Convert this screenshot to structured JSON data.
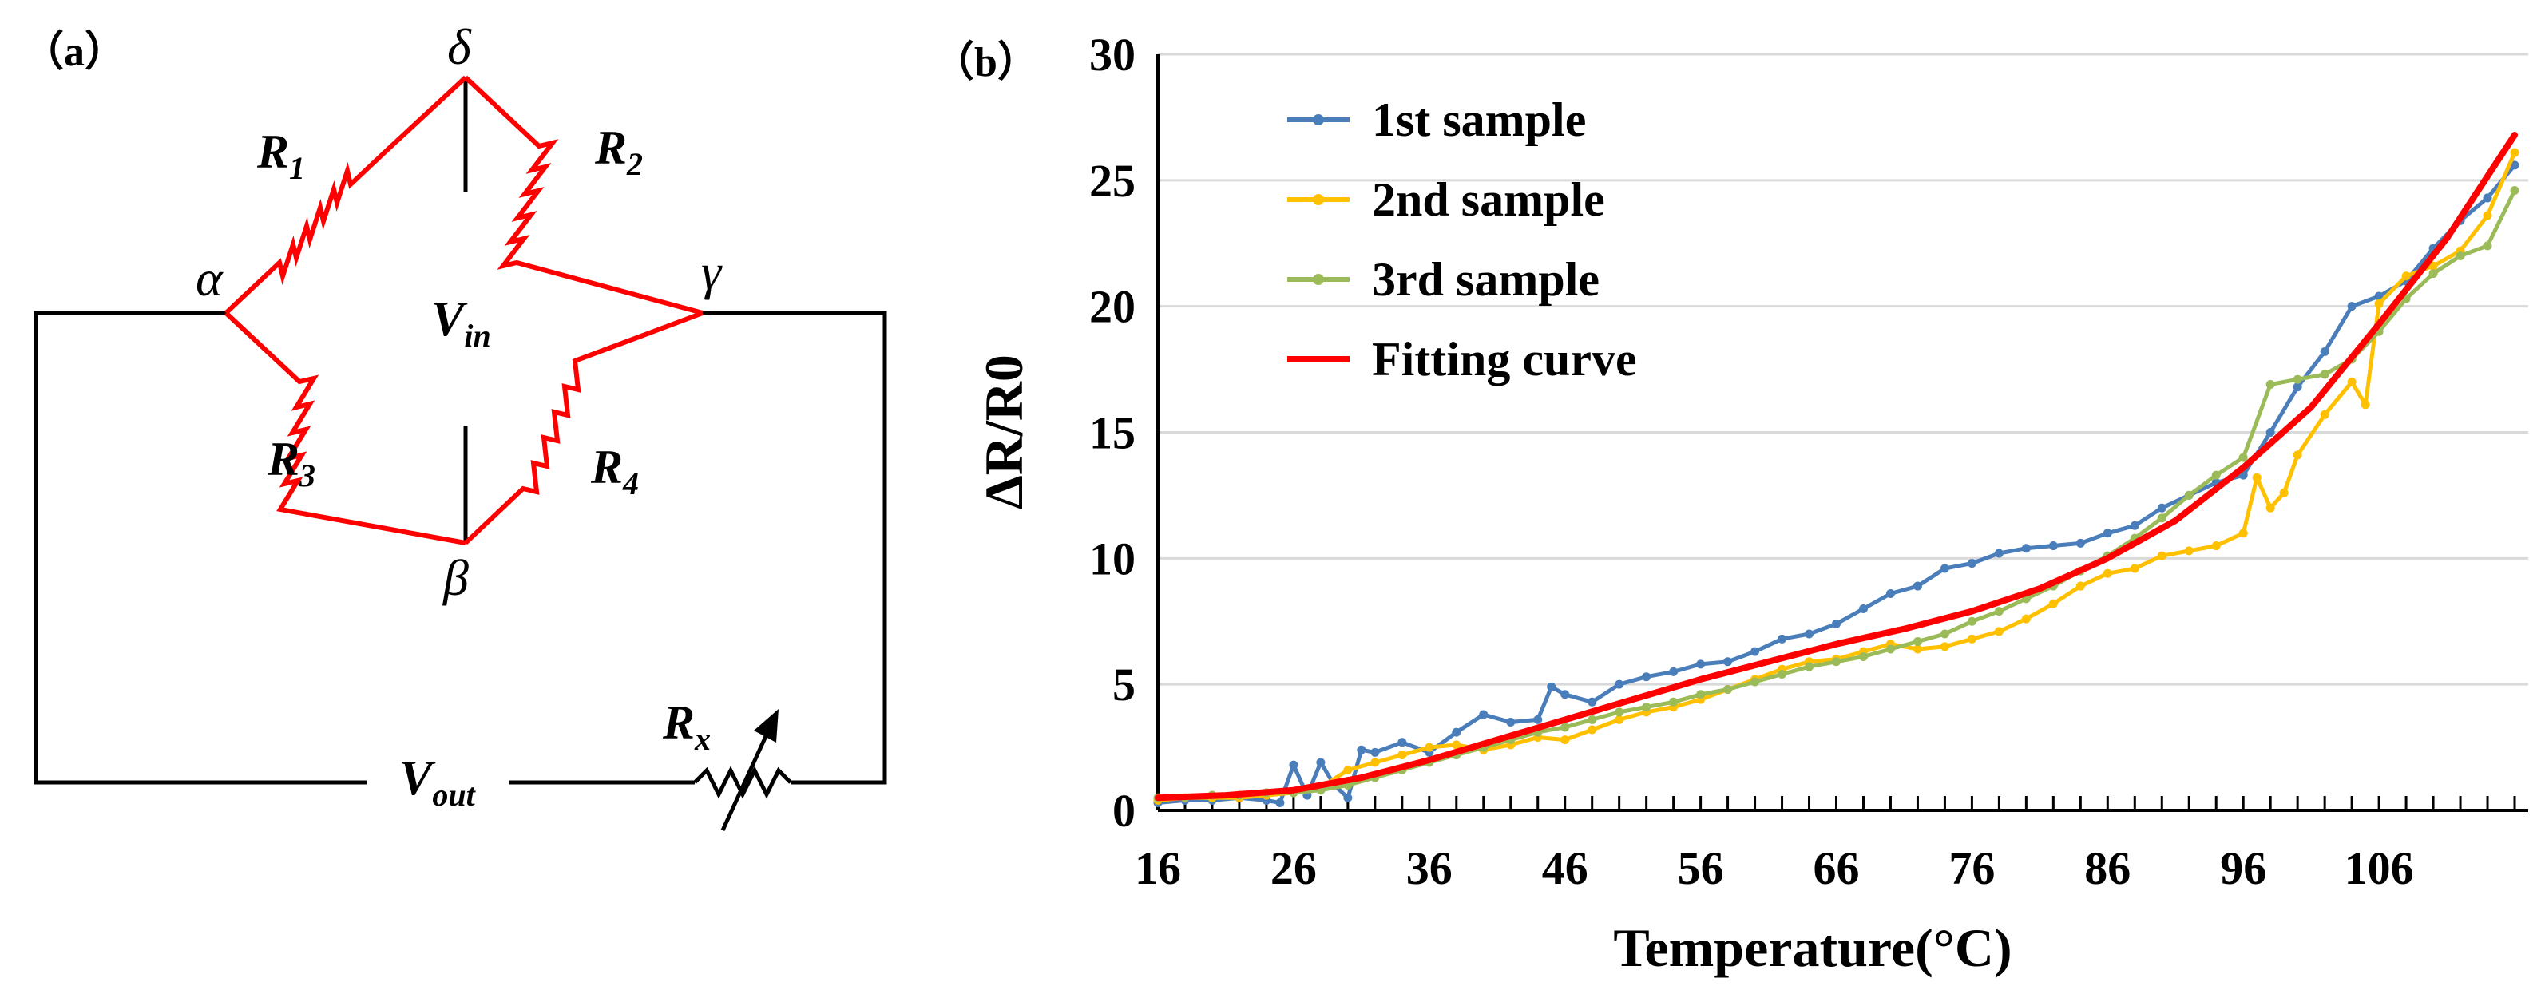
{
  "panel_a": {
    "label": "（a）",
    "nodes": {
      "alpha": "α",
      "beta": "β",
      "gamma": "γ",
      "delta": "δ"
    },
    "resistors": [
      {
        "name": "R",
        "sub": "1"
      },
      {
        "name": "R",
        "sub": "2"
      },
      {
        "name": "R",
        "sub": "3"
      },
      {
        "name": "R",
        "sub": "4"
      }
    ],
    "rx": {
      "name": "R",
      "sub": "x"
    },
    "vin": {
      "name": "V",
      "sub": "in"
    },
    "vout": {
      "name": "V",
      "sub": "out"
    },
    "colors": {
      "bridge": "#ff0000",
      "wire": "#000000"
    }
  },
  "panel_b": {
    "label": "（b）"
  },
  "chart_data": {
    "type": "line",
    "title": "",
    "xlabel": "Temperature(°C)",
    "ylabel": "ΔR/R0",
    "xlim": [
      16,
      117
    ],
    "ylim": [
      0,
      30
    ],
    "xticks": [
      16,
      26,
      36,
      46,
      56,
      66,
      76,
      86,
      96,
      106
    ],
    "yticks": [
      0,
      5,
      10,
      15,
      20,
      25,
      30
    ],
    "grid": "horizontal",
    "legend_position": "top-left",
    "series": [
      {
        "name": "1st sample",
        "color": "#4a7ebb",
        "markers": true,
        "x": [
          16,
          18,
          20,
          22,
          24,
          25,
          26,
          27,
          28,
          29,
          30,
          31,
          32,
          34,
          36,
          38,
          40,
          42,
          44,
          45,
          46,
          48,
          50,
          52,
          54,
          56,
          58,
          60,
          62,
          64,
          66,
          68,
          70,
          72,
          74,
          76,
          78,
          80,
          82,
          84,
          86,
          88,
          90,
          92,
          94,
          96,
          98,
          100,
          102,
          104,
          106,
          108,
          110,
          112,
          114,
          116
        ],
        "values": [
          0.3,
          0.4,
          0.4,
          0.5,
          0.4,
          0.3,
          1.8,
          0.6,
          1.9,
          1.0,
          0.5,
          2.4,
          2.3,
          2.7,
          2.3,
          3.1,
          3.8,
          3.5,
          3.6,
          4.9,
          4.6,
          4.3,
          5.0,
          5.3,
          5.5,
          5.8,
          5.9,
          6.3,
          6.8,
          7.0,
          7.4,
          8.0,
          8.6,
          8.9,
          9.6,
          9.8,
          10.2,
          10.4,
          10.5,
          10.6,
          11.0,
          11.3,
          12.0,
          12.5,
          13.0,
          13.3,
          15.0,
          16.8,
          18.2,
          20.0,
          20.4,
          21.0,
          22.3,
          23.4,
          24.3,
          25.6
        ]
      },
      {
        "name": "2nd sample",
        "color": "#ffc000",
        "markers": true,
        "x": [
          16,
          18,
          20,
          22,
          24,
          26,
          28,
          30,
          32,
          34,
          36,
          38,
          40,
          42,
          44,
          46,
          48,
          50,
          52,
          54,
          56,
          58,
          60,
          62,
          64,
          66,
          68,
          70,
          72,
          74,
          76,
          78,
          80,
          82,
          84,
          86,
          88,
          90,
          92,
          94,
          96,
          97,
          98,
          99,
          100,
          102,
          104,
          105,
          106,
          108,
          110,
          112,
          114,
          116
        ],
        "values": [
          0.4,
          0.5,
          0.5,
          0.5,
          0.6,
          0.7,
          0.9,
          1.6,
          1.9,
          2.2,
          2.5,
          2.6,
          2.4,
          2.6,
          2.9,
          2.8,
          3.2,
          3.6,
          3.9,
          4.1,
          4.4,
          4.8,
          5.2,
          5.6,
          5.9,
          6.0,
          6.3,
          6.6,
          6.4,
          6.5,
          6.8,
          7.1,
          7.6,
          8.2,
          8.9,
          9.4,
          9.6,
          10.1,
          10.3,
          10.5,
          11.0,
          13.2,
          12.0,
          12.6,
          14.1,
          15.7,
          17.0,
          16.1,
          20.1,
          21.2,
          21.6,
          22.2,
          23.6,
          26.1
        ]
      },
      {
        "name": "3rd sample",
        "color": "#9bbb59",
        "markers": true,
        "x": [
          16,
          18,
          20,
          22,
          24,
          26,
          28,
          30,
          32,
          34,
          36,
          38,
          40,
          42,
          44,
          46,
          48,
          50,
          52,
          54,
          56,
          58,
          60,
          62,
          64,
          66,
          68,
          70,
          72,
          74,
          76,
          78,
          80,
          82,
          84,
          86,
          88,
          90,
          92,
          94,
          96,
          98,
          100,
          102,
          104,
          106,
          108,
          110,
          112,
          114,
          116
        ],
        "values": [
          0.5,
          0.5,
          0.6,
          0.6,
          0.7,
          0.7,
          0.8,
          1.0,
          1.3,
          1.6,
          1.9,
          2.2,
          2.5,
          2.8,
          3.1,
          3.3,
          3.6,
          3.9,
          4.1,
          4.3,
          4.6,
          4.8,
          5.1,
          5.4,
          5.7,
          5.9,
          6.1,
          6.4,
          6.7,
          7.0,
          7.5,
          7.9,
          8.4,
          8.9,
          9.5,
          10.1,
          10.8,
          11.6,
          12.5,
          13.3,
          14.0,
          16.9,
          17.1,
          17.3,
          17.9,
          19.0,
          20.3,
          21.3,
          22.0,
          22.4,
          24.6
        ]
      },
      {
        "name": "Fitting curve",
        "color": "#ff0000",
        "markers": false,
        "x": [
          16,
          21,
          26,
          31,
          36,
          41,
          46,
          51,
          56,
          61,
          66,
          71,
          76,
          81,
          86,
          91,
          96,
          101,
          106,
          111,
          116
        ],
        "values": [
          0.5,
          0.6,
          0.8,
          1.3,
          2.0,
          2.8,
          3.6,
          4.4,
          5.2,
          5.9,
          6.6,
          7.2,
          7.9,
          8.8,
          10.0,
          11.5,
          13.6,
          16.0,
          19.3,
          22.7,
          26.8
        ]
      }
    ]
  }
}
